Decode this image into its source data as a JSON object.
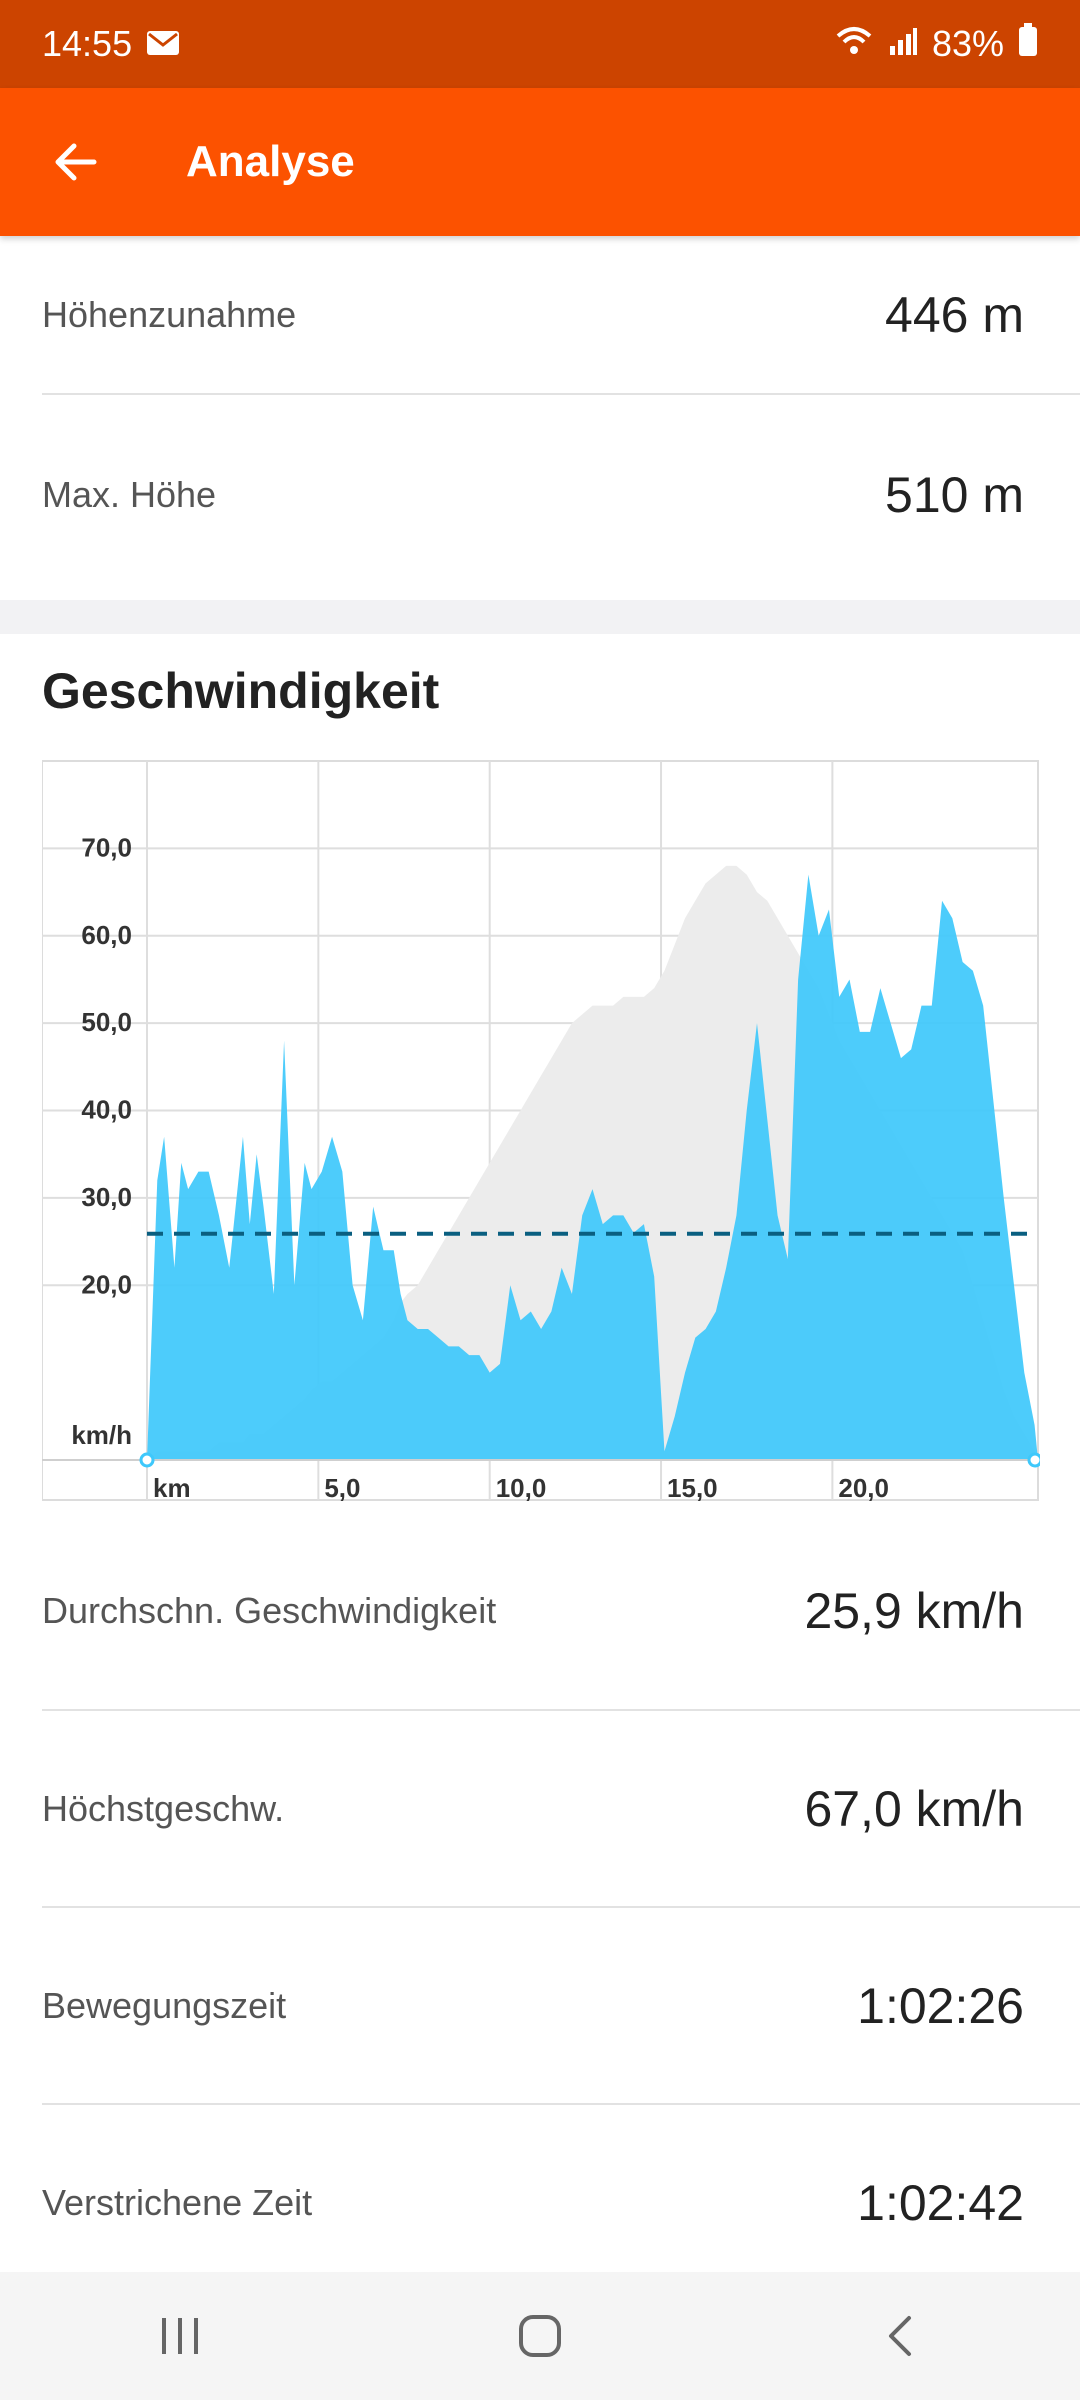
{
  "status_bar": {
    "time": "14:55",
    "battery": "83%"
  },
  "app_bar": {
    "title": "Analyse"
  },
  "elevation_stats": [
    {
      "label": "Höhenzunahme",
      "value": "446 m"
    },
    {
      "label": "Max. Höhe",
      "value": "510 m"
    }
  ],
  "speed_section": {
    "title": "Geschwindigkeit"
  },
  "speed_stats": [
    {
      "label": "Durchschn. Geschwindigkeit",
      "value": "25,9 km/h"
    },
    {
      "label": "Höchstgeschw.",
      "value": "67,0 km/h"
    },
    {
      "label": "Bewegungszeit",
      "value": "1:02:26"
    },
    {
      "label": "Verstrichene Zeit",
      "value": "1:02:42"
    }
  ],
  "colors": {
    "accent": "#fc5200",
    "status_bar": "#cc4400",
    "speed_fill": "#3ec8fb",
    "elevation_fill": "#ececec",
    "average_line": "#0a5f80"
  },
  "chart_data": {
    "type": "area",
    "xlabel": "km",
    "ylabel": "km/h",
    "x_tick_labels": [
      "5,0",
      "10,0",
      "15,0",
      "20,0"
    ],
    "x_ticks": [
      5,
      10,
      15,
      20
    ],
    "y_tick_labels": [
      "20,0",
      "30,0",
      "40,0",
      "50,0",
      "60,0",
      "70,0"
    ],
    "y_ticks": [
      20,
      30,
      40,
      50,
      60,
      70
    ],
    "xlim": [
      0,
      26
    ],
    "ylim": [
      0,
      80
    ],
    "grid": true,
    "average_speed": 25.9,
    "speed_series": {
      "x": [
        0,
        0.3,
        0.5,
        0.8,
        1.0,
        1.2,
        1.5,
        1.8,
        2.1,
        2.4,
        2.8,
        3.0,
        3.2,
        3.4,
        3.7,
        4.0,
        4.3,
        4.6,
        4.8,
        5.1,
        5.4,
        5.7,
        6.0,
        6.3,
        6.6,
        6.9,
        7.2,
        7.4,
        7.6,
        7.9,
        8.2,
        8.5,
        8.8,
        9.1,
        9.4,
        9.7,
        10.0,
        10.3,
        10.6,
        10.9,
        11.2,
        11.5,
        11.8,
        12.1,
        12.4,
        12.7,
        13.0,
        13.3,
        13.6,
        13.9,
        14.2,
        14.5,
        14.8,
        15.1,
        15.4,
        15.7,
        16.0,
        16.3,
        16.6,
        16.9,
        17.2,
        17.5,
        17.8,
        18.1,
        18.4,
        18.7,
        19.0,
        19.3,
        19.6,
        19.9,
        20.2,
        20.5,
        20.8,
        21.1,
        21.4,
        21.7,
        22.0,
        22.3,
        22.6,
        22.9,
        23.2,
        23.5,
        23.8,
        24.1,
        24.4,
        24.7,
        25.0,
        25.3,
        25.6,
        25.9,
        26.0
      ],
      "y": [
        0,
        32,
        37,
        22,
        34,
        31,
        33,
        33,
        28,
        22,
        37,
        27,
        35,
        29,
        19,
        48,
        20,
        34,
        31,
        33,
        37,
        33,
        20,
        16,
        29,
        24,
        24,
        19,
        16,
        15,
        15,
        14,
        13,
        13,
        12,
        12,
        10,
        11,
        20,
        16,
        17,
        15,
        17,
        22,
        19,
        28,
        31,
        27,
        28,
        28,
        26,
        27,
        21,
        1,
        5,
        10,
        14,
        15,
        17,
        22,
        28,
        40,
        50,
        39,
        28,
        23,
        55,
        67,
        60,
        63,
        53,
        55,
        49,
        49,
        54,
        50,
        46,
        47,
        52,
        52,
        64,
        62,
        57,
        56,
        52,
        41,
        30,
        20,
        10,
        4,
        0
      ],
      "elevation": [
        0,
        1,
        1,
        1,
        1,
        1,
        1,
        1,
        2,
        2,
        2,
        3,
        3,
        3,
        4,
        5,
        6,
        7,
        8,
        9,
        9,
        10,
        11,
        12,
        13,
        14,
        16,
        18,
        19,
        20,
        22,
        24,
        26,
        28,
        30,
        32,
        34,
        36,
        38,
        40,
        42,
        44,
        46,
        48,
        50,
        51,
        52,
        52,
        52,
        53,
        53,
        53,
        54,
        56,
        59,
        62,
        64,
        66,
        67,
        68,
        68,
        67,
        65,
        64,
        62,
        60,
        58,
        56,
        54,
        51,
        48,
        46,
        44,
        42,
        40,
        38,
        36,
        34,
        32,
        30,
        28,
        26,
        24,
        20,
        16,
        12,
        8,
        5,
        3,
        1,
        0
      ]
    }
  }
}
